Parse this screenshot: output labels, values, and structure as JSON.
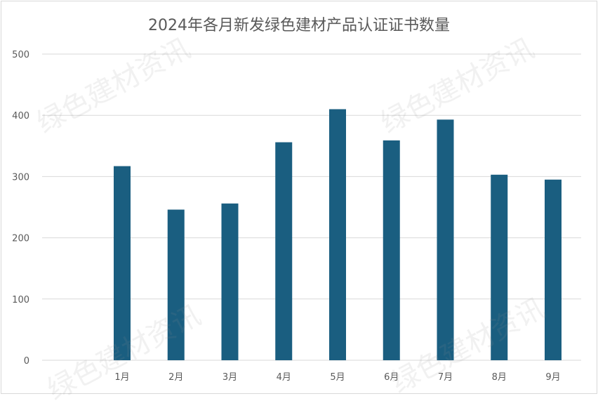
{
  "chart_data": {
    "type": "bar",
    "title": "2024年各月新发绿色建材产品认证证书数量",
    "categories": [
      "1月",
      "2月",
      "3月",
      "4月",
      "5月",
      "6月",
      "7月",
      "8月",
      "9月"
    ],
    "values": [
      317,
      246,
      256,
      356,
      410,
      359,
      393,
      303,
      295
    ],
    "ylim": [
      0,
      500
    ],
    "yticks": [
      0,
      100,
      200,
      300,
      400,
      500
    ],
    "xlabel": "",
    "ylabel": "",
    "grid": true,
    "legend": "none",
    "bar_color": "#1a5e80"
  },
  "watermark": {
    "text": "绿色建材资讯"
  }
}
